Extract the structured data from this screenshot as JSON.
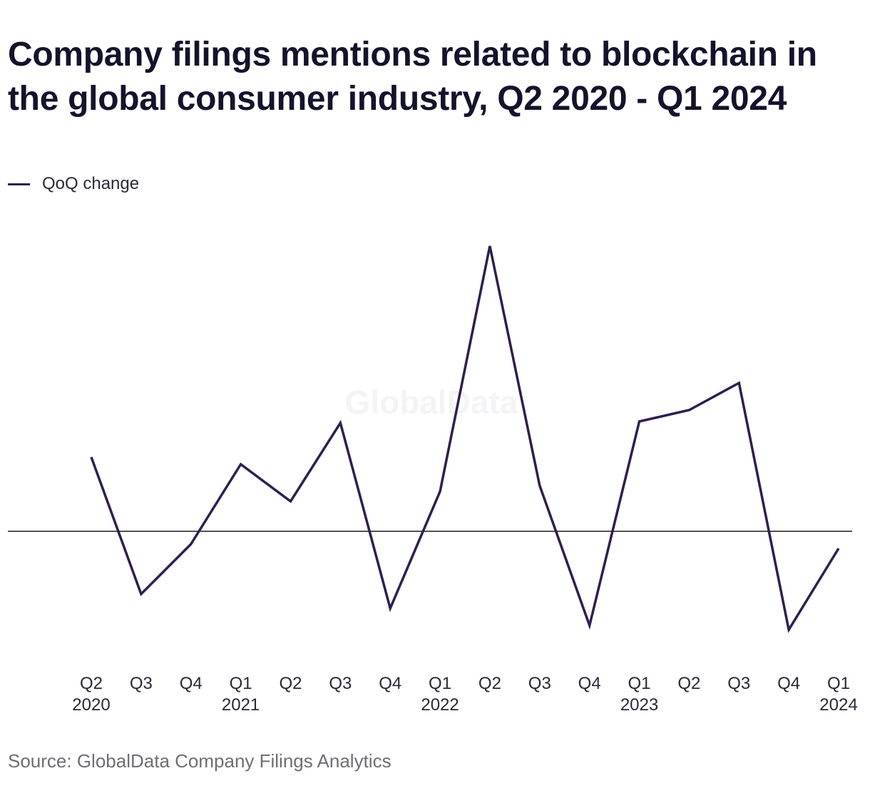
{
  "title": "Company filings mentions related to blockchain in the global consumer industry, Q2 2020 - Q1 2024",
  "legend": {
    "label": "QoQ change",
    "color": "#2e1f4f"
  },
  "source": "Source: GlobalData Company Filings Analytics",
  "watermark": "GlobalData",
  "chart_data": {
    "type": "line",
    "title": "Company filings mentions related to blockchain in the global consumer industry, Q2 2020 - Q1 2024",
    "x_ticks": [
      {
        "quarter": "Q2",
        "year": "2020"
      },
      {
        "quarter": "Q3",
        "year": ""
      },
      {
        "quarter": "Q4",
        "year": ""
      },
      {
        "quarter": "Q1",
        "year": "2021"
      },
      {
        "quarter": "Q2",
        "year": ""
      },
      {
        "quarter": "Q3",
        "year": ""
      },
      {
        "quarter": "Q4",
        "year": ""
      },
      {
        "quarter": "Q1",
        "year": "2022"
      },
      {
        "quarter": "Q2",
        "year": ""
      },
      {
        "quarter": "Q3",
        "year": ""
      },
      {
        "quarter": "Q4",
        "year": ""
      },
      {
        "quarter": "Q1",
        "year": "2023"
      },
      {
        "quarter": "Q2",
        "year": ""
      },
      {
        "quarter": "Q3",
        "year": ""
      },
      {
        "quarter": "Q4",
        "year": ""
      },
      {
        "quarter": "Q1",
        "year": "2024"
      }
    ],
    "series": [
      {
        "name": "QoQ change",
        "color": "#2e1f4f",
        "values": [
          0.26,
          -0.22,
          -0.045,
          0.235,
          0.105,
          0.38,
          -0.27,
          0.14,
          1.0,
          0.16,
          -0.33,
          0.385,
          0.425,
          0.52,
          -0.345,
          -0.06
        ]
      }
    ],
    "ylim": [
      -0.45,
      1.05
    ],
    "baseline": 0,
    "y_axis_labels": "none",
    "grid": false,
    "legend_position": "top-left"
  }
}
